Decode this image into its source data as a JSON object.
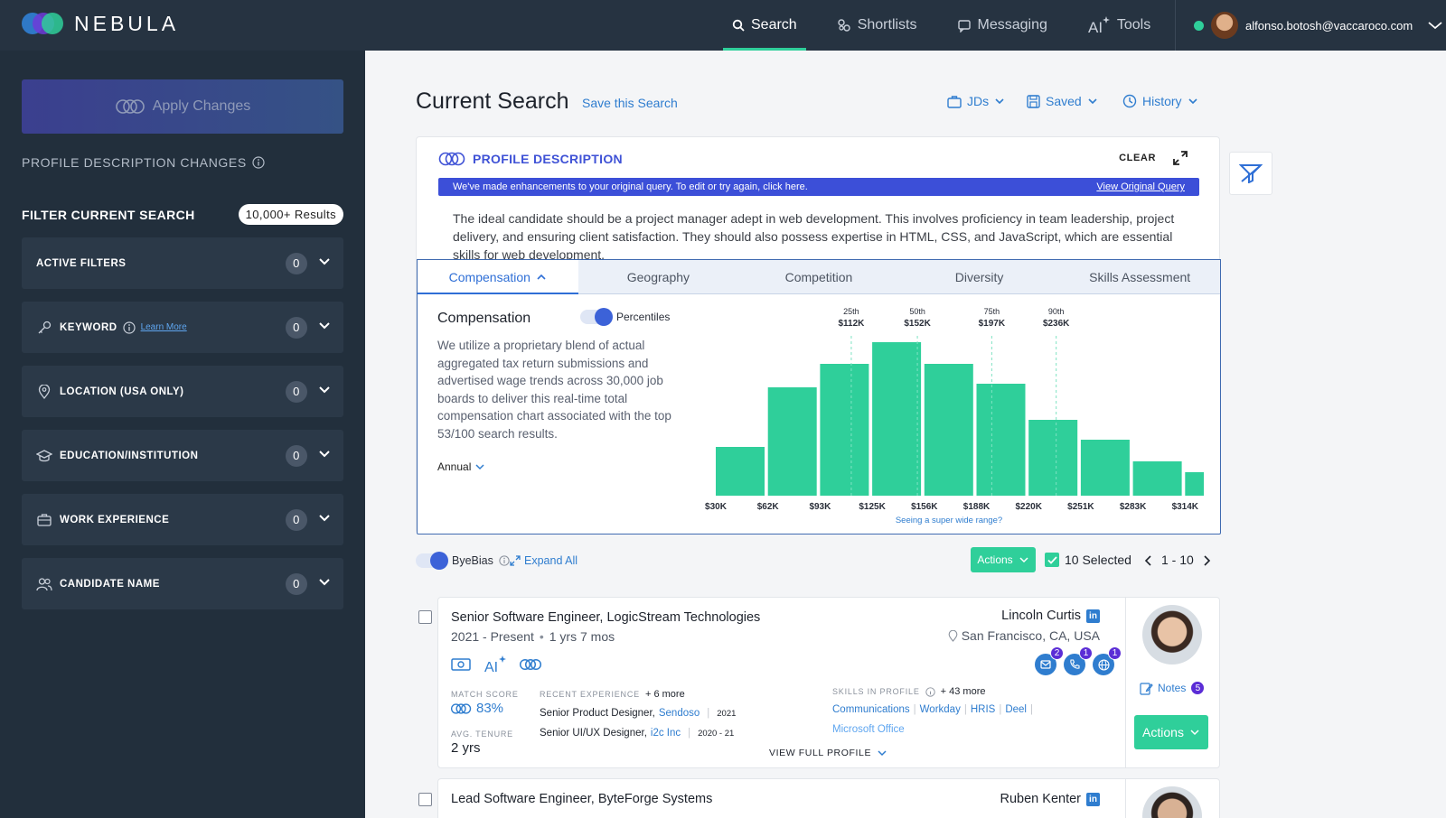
{
  "app": {
    "name": "NEBULA"
  },
  "nav": {
    "items": [
      {
        "label": "Search",
        "icon": "search-icon",
        "active": true
      },
      {
        "label": "Shortlists",
        "icon": "shortlist-icon"
      },
      {
        "label": "Messaging",
        "icon": "message-icon"
      },
      {
        "label": "Tools",
        "icon": "ai-tools-icon"
      }
    ],
    "user_email": "alfonso.botosh@vaccaroco.com"
  },
  "sidebar": {
    "apply_label": "Apply Changes",
    "profile_changes_label": "PROFILE DESCRIPTION CHANGES",
    "filter_heading": "FILTER CURRENT SEARCH",
    "results_badge": "10,000+ Results",
    "learn_more": "Learn More",
    "filters": [
      {
        "label": "ACTIVE FILTERS",
        "count": "0",
        "icon": ""
      },
      {
        "label": "KEYWORD",
        "count": "0",
        "icon": "key-icon"
      },
      {
        "label": "LOCATION (USA ONLY)",
        "count": "0",
        "icon": "location-pin-icon"
      },
      {
        "label": "EDUCATION/INSTITUTION",
        "count": "0",
        "icon": "graduation-cap-icon"
      },
      {
        "label": "WORK EXPERIENCE",
        "count": "0",
        "icon": "briefcase-icon"
      },
      {
        "label": "CANDIDATE NAME",
        "count": "0",
        "icon": "users-icon"
      }
    ]
  },
  "main": {
    "title": "Current Search",
    "save_link": "Save this Search",
    "dropdowns": [
      "JDs",
      "Saved",
      "History"
    ],
    "profile": {
      "heading": "PROFILE DESCRIPTION",
      "clear": "CLEAR",
      "banner_text": "We've made enhancements to your original query.  To edit or try again, click here.",
      "banner_link": "View Original Query",
      "description": "The ideal candidate should be a project manager adept in web development. This involves proficiency in team leadership, project delivery, and ensuring client satisfaction. They should also possess expertise in HTML, CSS, and JavaScript, which are essential skills for web development."
    },
    "tabs": [
      "Compensation",
      "Geography",
      "Competition",
      "Diversity",
      "Skills Assessment"
    ],
    "compensation": {
      "title": "Compensation",
      "toggle_label": "Percentiles",
      "description": "We utilize a proprietary blend of actual aggregated tax return submissions and advertised wage trends across 30,000 job boards to deliver this real-time total compensation chart associated with the top 53/100 search results.",
      "period": "Annual",
      "range_link": "Seeing a super wide range?"
    },
    "toolbar": {
      "byebias": "ByeBias",
      "expand_all": "Expand All",
      "actions": "Actions",
      "selected": "10 Selected",
      "pager": "1 - 10"
    },
    "results": [
      {
        "title": "Senior Software Engineer, LogicStream Technologies",
        "dates": "2021 - Present",
        "duration": "1 yrs 7 mos",
        "name": "Lincoln Curtis",
        "location": "San Francisco, CA, USA",
        "match_label": "MATCH SCORE",
        "match": "83%",
        "tenure_label": "AVG. TENURE",
        "tenure": "2 yrs",
        "recent_label": "RECENT EXPERIENCE",
        "recent_more": "+ 6 more",
        "exp1_role": "Senior Product Designer,",
        "exp1_company": "Sendoso",
        "exp1_years": "2021",
        "exp2_role": "Senior UI/UX Designer,",
        "exp2_company": "i2c Inc",
        "exp2_years": "2020 - 21",
        "skills_label": "SKILLS IN PROFILE",
        "skills_more": "+ 43 more",
        "skills": [
          "Communications",
          "Workday",
          "HRIS",
          "Deel"
        ],
        "skill_extra": "Microsoft Office",
        "view_full": "VIEW FULL PROFILE",
        "notes": "Notes",
        "notes_count": "5",
        "email_count": "2",
        "phone_count": "1",
        "web_count": "1",
        "actions": "Actions"
      },
      {
        "title": "Lead Software Engineer, ByteForge Systems",
        "name": "Ruben Kenter"
      }
    ]
  },
  "chart_data": {
    "type": "bar",
    "categories": [
      "$30K",
      "$62K",
      "$93K",
      "$125K",
      "$156K",
      "$188K",
      "$220K",
      "$251K",
      "$283K",
      "$314K"
    ],
    "values": [
      27,
      60,
      73,
      85,
      73,
      62,
      42,
      31,
      19,
      13
    ],
    "percentiles": [
      {
        "label": "25th",
        "value": "$112K",
        "x": 112
      },
      {
        "label": "50th",
        "value": "$152K",
        "x": 152
      },
      {
        "label": "75th",
        "value": "$197K",
        "x": 197
      },
      {
        "label": "90th",
        "value": "$236K",
        "x": 236
      }
    ],
    "bar_color": "#2fcf9a"
  }
}
